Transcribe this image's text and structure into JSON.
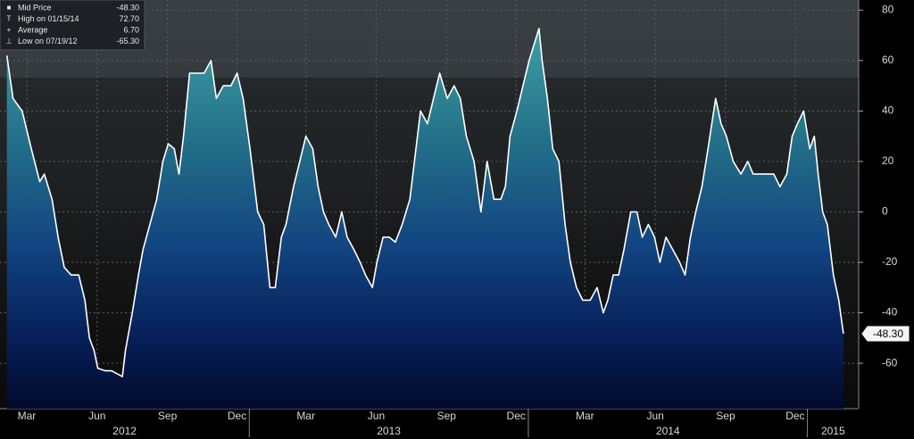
{
  "chart_data": {
    "type": "area-line",
    "legend": [
      {
        "name": "Mid Price",
        "value_label": "-48.30"
      },
      {
        "name": "High on 01/15/14",
        "value_label": "72.70"
      },
      {
        "name": "Average",
        "value_label": "6.70"
      },
      {
        "name": "Low on 07/19/12",
        "value_label": "-65.30"
      }
    ],
    "x": [
      "2012-02-19",
      "2012-02-27",
      "2012-03-10",
      "2012-03-22",
      "2012-04-02",
      "2012-04-08",
      "2012-04-18",
      "2012-04-26",
      "2012-05-04",
      "2012-05-13",
      "2012-05-23",
      "2012-05-31",
      "2012-06-06",
      "2012-06-12",
      "2012-06-17",
      "2012-06-27",
      "2012-07-05",
      "2012-07-19",
      "2012-07-23",
      "2012-08-01",
      "2012-08-09",
      "2012-08-15",
      "2012-08-24",
      "2012-09-02",
      "2012-09-10",
      "2012-09-17",
      "2012-09-25",
      "2012-10-01",
      "2012-10-07",
      "2012-10-15",
      "2012-10-24",
      "2012-11-03",
      "2012-11-12",
      "2012-11-19",
      "2012-11-28",
      "2012-12-08",
      "2012-12-16",
      "2012-12-24",
      "2013-01-02",
      "2013-01-12",
      "2013-01-20",
      "2013-01-28",
      "2013-02-04",
      "2013-02-12",
      "2013-02-18",
      "2013-02-28",
      "2013-03-08",
      "2013-03-16",
      "2013-03-25",
      "2013-04-01",
      "2013-04-08",
      "2013-04-15",
      "2013-04-24",
      "2013-05-02",
      "2013-05-09",
      "2013-05-18",
      "2013-05-26",
      "2013-06-02",
      "2013-06-11",
      "2013-06-17",
      "2013-06-25",
      "2013-07-03",
      "2013-07-11",
      "2013-07-20",
      "2013-07-30",
      "2013-08-07",
      "2013-08-13",
      "2013-08-22",
      "2013-08-30",
      "2013-09-07",
      "2013-09-17",
      "2013-09-26",
      "2013-10-04",
      "2013-10-12",
      "2013-10-22",
      "2013-10-31",
      "2013-11-08",
      "2013-11-17",
      "2013-11-26",
      "2013-12-02",
      "2013-12-08",
      "2013-12-17",
      "2013-12-25",
      "2014-01-02",
      "2014-01-15",
      "2014-01-19",
      "2014-01-26",
      "2014-02-02",
      "2014-02-10",
      "2014-02-18",
      "2014-02-25",
      "2014-03-05",
      "2014-03-13",
      "2014-03-23",
      "2014-04-01",
      "2014-04-09",
      "2014-04-15",
      "2014-04-22",
      "2014-04-29",
      "2014-05-06",
      "2014-05-15",
      "2014-05-23",
      "2014-05-30",
      "2014-06-07",
      "2014-06-15",
      "2014-06-22",
      "2014-06-30",
      "2014-07-09",
      "2014-07-18",
      "2014-07-25",
      "2014-08-01",
      "2014-08-08",
      "2014-08-16",
      "2014-08-24",
      "2014-09-03",
      "2014-09-10",
      "2014-09-17",
      "2014-09-26",
      "2014-10-06",
      "2014-10-15",
      "2014-10-22",
      "2014-10-31",
      "2014-11-10",
      "2014-11-18",
      "2014-11-26",
      "2014-12-05",
      "2014-12-12",
      "2014-12-19",
      "2014-12-27",
      "2015-01-04",
      "2015-01-10",
      "2015-01-15",
      "2015-01-21",
      "2015-01-27",
      "2015-02-04",
      "2015-02-11",
      "2015-02-17"
    ],
    "series": [
      {
        "name": "Mid Price",
        "color": "#ffffff",
        "values": [
          62,
          45,
          40,
          25,
          12,
          15,
          5,
          -10,
          -22,
          -25,
          -25,
          -35,
          -50,
          -55,
          -62,
          -63,
          -63,
          -65.3,
          -55,
          -40,
          -25,
          -15,
          -5,
          5,
          20,
          27,
          25,
          15,
          30,
          55,
          55,
          55,
          60,
          45,
          50,
          50,
          55,
          45,
          25,
          0,
          -5,
          -30,
          -30,
          -10,
          -5,
          10,
          20,
          30,
          25,
          10,
          0,
          -5,
          -10,
          0,
          -10,
          -15,
          -20,
          -25,
          -30,
          -20,
          -10,
          -10,
          -12,
          -5,
          5,
          25,
          40,
          35,
          45,
          55,
          45,
          50,
          45,
          30,
          20,
          0,
          20,
          5,
          5,
          10,
          30,
          40,
          50,
          60,
          72.7,
          60,
          45,
          25,
          20,
          -5,
          -20,
          -30,
          -35,
          -35,
          -30,
          -40,
          -35,
          -25,
          -25,
          -15,
          0,
          0,
          -10,
          -5,
          -10,
          -20,
          -10,
          -15,
          -20,
          -25,
          -10,
          0,
          10,
          25,
          45,
          35,
          30,
          20,
          15,
          20,
          15,
          15,
          15,
          15,
          10,
          15,
          30,
          35,
          40,
          25,
          30,
          15,
          0,
          -5,
          -25,
          -35,
          -48.3
        ]
      }
    ],
    "xlim": [
      "2012-02-10",
      "2015-03-09"
    ],
    "ylim": [
      -78,
      84
    ],
    "yticks": [
      80,
      60,
      40,
      20,
      0,
      -20,
      -40,
      -60
    ],
    "xticks": [
      {
        "value": "2012-03-01",
        "label": "Mar"
      },
      {
        "value": "2012-06-01",
        "label": "Jun"
      },
      {
        "value": "2012-09-01",
        "label": "Sep"
      },
      {
        "value": "2012-12-01",
        "label": "Dec"
      },
      {
        "value": "2013-03-01",
        "label": "Mar"
      },
      {
        "value": "2013-06-01",
        "label": "Jun"
      },
      {
        "value": "2013-09-01",
        "label": "Sep"
      },
      {
        "value": "2013-12-01",
        "label": "Dec"
      },
      {
        "value": "2014-03-01",
        "label": "Mar"
      },
      {
        "value": "2014-06-01",
        "label": "Jun"
      },
      {
        "value": "2014-09-01",
        "label": "Sep"
      },
      {
        "value": "2014-12-01",
        "label": "Dec"
      }
    ],
    "year_ticks": [
      {
        "value": "2012-01-01",
        "label": "2012"
      },
      {
        "value": "2013-01-01",
        "label": "2013"
      },
      {
        "value": "2014-01-01",
        "label": "2014"
      },
      {
        "value": "2015-01-01",
        "label": "2015"
      }
    ],
    "grid": true
  }
}
